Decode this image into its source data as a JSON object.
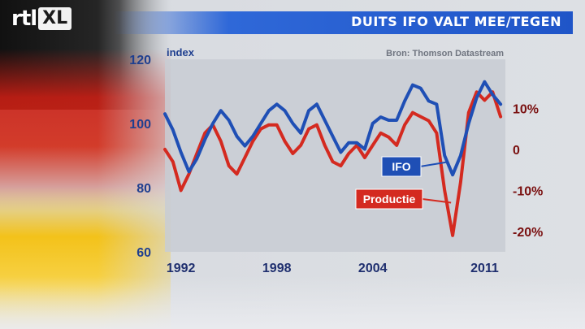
{
  "header": {
    "logo_rtl": "rtl",
    "logo_xl": "XL",
    "title": "DUITS IFO VALT MEE/TEGEN"
  },
  "chart_data": {
    "type": "line",
    "ylabel": "index",
    "source": "Bron: Thomson Datastream",
    "xticks": [
      "1992",
      "1998",
      "2004",
      "2011"
    ],
    "xtick_years": [
      1992,
      1998,
      2004,
      2011
    ],
    "xlim": [
      1991,
      2012.3
    ],
    "ylim_left": [
      60,
      120
    ],
    "yticks_left": [
      "120",
      "100",
      "80",
      "60"
    ],
    "ylim_right": [
      -25,
      22
    ],
    "yticks_right": [
      "10%",
      "0",
      "-10%",
      "-20%"
    ],
    "yticks_right_values": [
      10,
      0,
      -10,
      -20
    ],
    "series": [
      {
        "name": "IFO",
        "axis": "left",
        "color": "#1f4fb5",
        "x": [
          1991.0,
          1991.5,
          1992.0,
          1992.5,
          1993.0,
          1993.5,
          1994.0,
          1994.5,
          1995.0,
          1995.5,
          1996.0,
          1996.5,
          1997.0,
          1997.5,
          1998.0,
          1998.5,
          1999.0,
          1999.5,
          2000.0,
          2000.5,
          2001.0,
          2001.5,
          2002.0,
          2002.5,
          2003.0,
          2003.5,
          2004.0,
          2004.5,
          2005.0,
          2005.5,
          2006.0,
          2006.5,
          2007.0,
          2007.5,
          2008.0,
          2008.5,
          2009.0,
          2009.5,
          2010.0,
          2010.5,
          2011.0,
          2011.5,
          2012.0
        ],
        "y": [
          103,
          98,
          91,
          85,
          89,
          95,
          100,
          104,
          101,
          96,
          93,
          96,
          100,
          104,
          106,
          104,
          100,
          97,
          104,
          106,
          101,
          96,
          91,
          94,
          94,
          92,
          100,
          102,
          101,
          101,
          107,
          112,
          111,
          107,
          106,
          90,
          84,
          90,
          100,
          108,
          113,
          109,
          106
        ]
      },
      {
        "name": "Productie",
        "axis": "right",
        "color": "#d42a20",
        "x": [
          1991.0,
          1991.5,
          1992.0,
          1992.5,
          1993.0,
          1993.5,
          1994.0,
          1994.5,
          1995.0,
          1995.5,
          1996.0,
          1996.5,
          1997.0,
          1997.5,
          1998.0,
          1998.5,
          1999.0,
          1999.5,
          2000.0,
          2000.5,
          2001.0,
          2001.5,
          2002.0,
          2002.5,
          2003.0,
          2003.5,
          2004.0,
          2004.5,
          2005.0,
          2005.5,
          2006.0,
          2006.5,
          2007.0,
          2007.5,
          2008.0,
          2008.5,
          2009.0,
          2009.5,
          2010.0,
          2010.5,
          2011.0,
          2011.5,
          2012.0
        ],
        "y": [
          0,
          -3,
          -10,
          -6,
          -1,
          4,
          6,
          2,
          -4,
          -6,
          -2,
          2,
          5,
          6,
          6,
          2,
          -1,
          1,
          5,
          6,
          1,
          -3,
          -4,
          -1,
          1,
          -2,
          1,
          4,
          3,
          1,
          6,
          9,
          8,
          7,
          4,
          -10,
          -21,
          -8,
          9,
          14,
          12,
          14,
          8
        ]
      }
    ],
    "labels": {
      "ifo": "IFO",
      "productie": "Productie"
    }
  },
  "colors": {
    "title_bar": "#1f55c8",
    "ifo": "#1f4fb5",
    "productie": "#d42a20",
    "axis_left": "#1f3f8f",
    "axis_right": "#7a1010"
  }
}
